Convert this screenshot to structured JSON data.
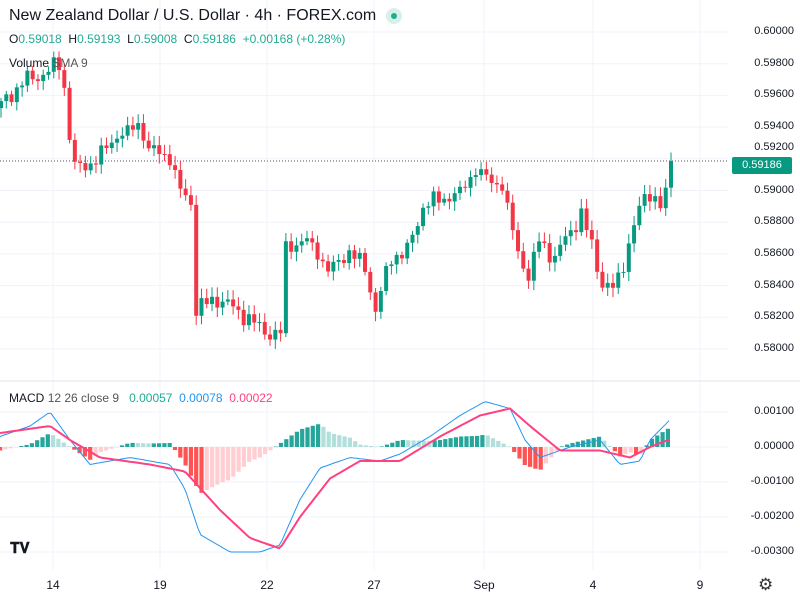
{
  "header": {
    "title": "New Zealand Dollar / U.S. Dollar · 4h · FOREX.com",
    "open_label": "O",
    "open": "0.59018",
    "high_label": "H",
    "high": "0.59193",
    "low_label": "L",
    "low": "0.59008",
    "close_label": "C",
    "close": "0.59186",
    "change": "+0.00168 (+0.28%)",
    "volume_label": "Volume",
    "volume_sma": "SMA 9"
  },
  "macd_legend": {
    "label": "MACD",
    "params": "12 26 close 9",
    "hist": "0.00057",
    "macd": "0.00078",
    "signal": "0.00022"
  },
  "price_axis": [
    "0.60000",
    "0.59800",
    "0.59600",
    "0.59400",
    "0.59200",
    "0.59000",
    "0.58800",
    "0.58600",
    "0.58400",
    "0.58200",
    "0.58000"
  ],
  "last_price": "0.59186",
  "macd_axis": [
    "0.00100",
    "0.00000",
    "-0.00100",
    "-0.00200",
    "-0.00300"
  ],
  "time_axis": [
    "14",
    "19",
    "22",
    "27",
    "Sep",
    "4",
    "9"
  ],
  "logo": "TV",
  "colors": {
    "up": "#089981",
    "down": "#f23645",
    "macd": "#2196f3",
    "signal": "#ff4081"
  },
  "chart_data": {
    "type": "candlestick",
    "symbol": "NZDUSD",
    "interval": "4h",
    "ylim": [
      0.5795,
      0.6005
    ],
    "close_path": [
      [
        0,
        0.5955
      ],
      [
        4,
        0.5968
      ],
      [
        9,
        0.5975
      ],
      [
        11,
        0.598
      ],
      [
        12,
        0.5965
      ],
      [
        13,
        0.5935
      ],
      [
        14,
        0.5915
      ],
      [
        18,
        0.5918
      ],
      [
        22,
        0.5935
      ],
      [
        26,
        0.5942
      ],
      [
        28,
        0.5925
      ],
      [
        32,
        0.5922
      ],
      [
        34,
        0.59
      ],
      [
        36,
        0.5892
      ],
      [
        37,
        0.5825
      ],
      [
        41,
        0.5832
      ],
      [
        46,
        0.5822
      ],
      [
        51,
        0.5808
      ],
      [
        53,
        0.581
      ],
      [
        54,
        0.5866
      ],
      [
        58,
        0.5868
      ],
      [
        62,
        0.585
      ],
      [
        66,
        0.5862
      ],
      [
        69,
        0.585
      ],
      [
        71,
        0.5825
      ],
      [
        74,
        0.5858
      ],
      [
        77,
        0.5862
      ],
      [
        80,
        0.589
      ],
      [
        84,
        0.5895
      ],
      [
        87,
        0.59
      ],
      [
        90,
        0.5912
      ],
      [
        93,
        0.5905
      ],
      [
        95,
        0.5905
      ],
      [
        98,
        0.586
      ],
      [
        100,
        0.5845
      ],
      [
        102,
        0.5868
      ],
      [
        105,
        0.5858
      ],
      [
        108,
        0.5875
      ],
      [
        110,
        0.5885
      ],
      [
        112,
        0.5865
      ],
      [
        114,
        0.584
      ],
      [
        116,
        0.5838
      ],
      [
        118,
        0.5855
      ],
      [
        120,
        0.5878
      ],
      [
        122,
        0.5896
      ],
      [
        124,
        0.5895
      ],
      [
        125,
        0.589
      ],
      [
        126,
        0.59018
      ],
      [
        127,
        0.59186
      ]
    ],
    "macd_path": [
      [
        0,
        0.0003
      ],
      [
        30,
        0.0006
      ],
      [
        50,
        0.001
      ],
      [
        70,
        0.0002
      ],
      [
        90,
        -0.0005
      ],
      [
        130,
        -0.0003
      ],
      [
        170,
        -0.0005
      ],
      [
        185,
        -0.0012
      ],
      [
        200,
        -0.0025
      ],
      [
        230,
        -0.003
      ],
      [
        260,
        -0.003
      ],
      [
        280,
        -0.0028
      ],
      [
        300,
        -0.0015
      ],
      [
        320,
        -0.0006
      ],
      [
        350,
        -0.0003
      ],
      [
        380,
        -0.0004
      ],
      [
        400,
        -0.0002
      ],
      [
        430,
        0.0003
      ],
      [
        460,
        0.0009
      ],
      [
        485,
        0.0013
      ],
      [
        510,
        0.0011
      ],
      [
        525,
        0.0002
      ],
      [
        540,
        -0.0003
      ],
      [
        570,
        0
      ],
      [
        600,
        0.0002
      ],
      [
        620,
        -0.0005
      ],
      [
        640,
        -0.0004
      ],
      [
        650,
        0.0002
      ],
      [
        670,
        0.00078
      ]
    ],
    "signal_path": [
      [
        0,
        0.0004
      ],
      [
        50,
        0.0006
      ],
      [
        70,
        0.0002
      ],
      [
        100,
        -0.0003
      ],
      [
        150,
        -0.0005
      ],
      [
        185,
        -0.0007
      ],
      [
        220,
        -0.0018
      ],
      [
        250,
        -0.0026
      ],
      [
        280,
        -0.0029
      ],
      [
        300,
        -0.002
      ],
      [
        330,
        -0.0009
      ],
      [
        360,
        -0.0004
      ],
      [
        400,
        -0.0004
      ],
      [
        440,
        0.0003
      ],
      [
        480,
        0.0009
      ],
      [
        510,
        0.0011
      ],
      [
        530,
        0.0006
      ],
      [
        560,
        -0.0001
      ],
      [
        600,
        -0.0001
      ],
      [
        630,
        -0.0003
      ],
      [
        650,
        0
      ],
      [
        670,
        0.00022
      ]
    ]
  }
}
